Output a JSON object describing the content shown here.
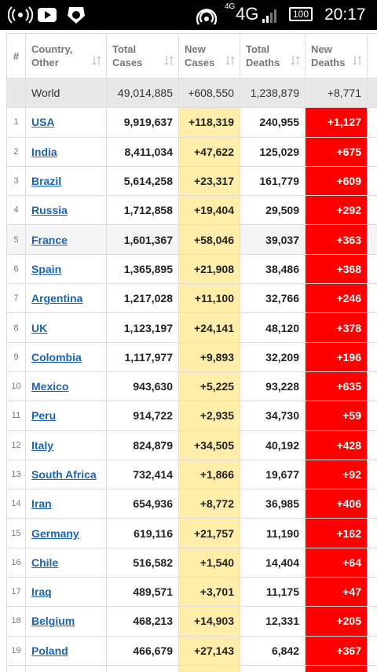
{
  "status_bar": {
    "network_small": "4G",
    "network": "4G",
    "battery": "100",
    "time": "20:17"
  },
  "table": {
    "headers": [
      "#",
      "Country, Other",
      "Total Cases",
      "New Cases",
      "Total Deaths",
      "New Deaths"
    ],
    "world": [
      "World",
      "49,014,885",
      "+608,550",
      "1,238,879",
      "+8,771"
    ],
    "rows": [
      [
        "1",
        "USA",
        "9,919,637",
        "+118,319",
        "240,955",
        "+1,127"
      ],
      [
        "2",
        "India",
        "8,411,034",
        "+47,622",
        "125,029",
        "+675"
      ],
      [
        "3",
        "Brazil",
        "5,614,258",
        "+23,317",
        "161,779",
        "+609"
      ],
      [
        "4",
        "Russia",
        "1,712,858",
        "+19,404",
        "29,509",
        "+292"
      ],
      [
        "5",
        "France",
        "1,601,367",
        "+58,046",
        "39,037",
        "+363"
      ],
      [
        "6",
        "Spain",
        "1,365,895",
        "+21,908",
        "38,486",
        "+368"
      ],
      [
        "7",
        "Argentina",
        "1,217,028",
        "+11,100",
        "32,766",
        "+246"
      ],
      [
        "8",
        "UK",
        "1,123,197",
        "+24,141",
        "48,120",
        "+378"
      ],
      [
        "9",
        "Colombia",
        "1,117,977",
        "+9,893",
        "32,209",
        "+196"
      ],
      [
        "10",
        "Mexico",
        "943,630",
        "+5,225",
        "93,228",
        "+635"
      ],
      [
        "11",
        "Peru",
        "914,722",
        "+2,935",
        "34,730",
        "+59"
      ],
      [
        "12",
        "Italy",
        "824,879",
        "+34,505",
        "40,192",
        "+428"
      ],
      [
        "13",
        "South Africa",
        "732,414",
        "+1,866",
        "19,677",
        "+92"
      ],
      [
        "14",
        "Iran",
        "654,936",
        "+8,772",
        "36,985",
        "+406"
      ],
      [
        "15",
        "Germany",
        "619,116",
        "+21,757",
        "11,190",
        "+162"
      ],
      [
        "16",
        "Chile",
        "516,582",
        "+1,540",
        "14,404",
        "+64"
      ],
      [
        "17",
        "Iraq",
        "489,571",
        "+3,701",
        "11,175",
        "+47"
      ],
      [
        "18",
        "Belgium",
        "468,213",
        "+14,903",
        "12,331",
        "+205"
      ],
      [
        "19",
        "Poland",
        "466,679",
        "+27,143",
        "6,842",
        "+367"
      ]
    ]
  }
}
